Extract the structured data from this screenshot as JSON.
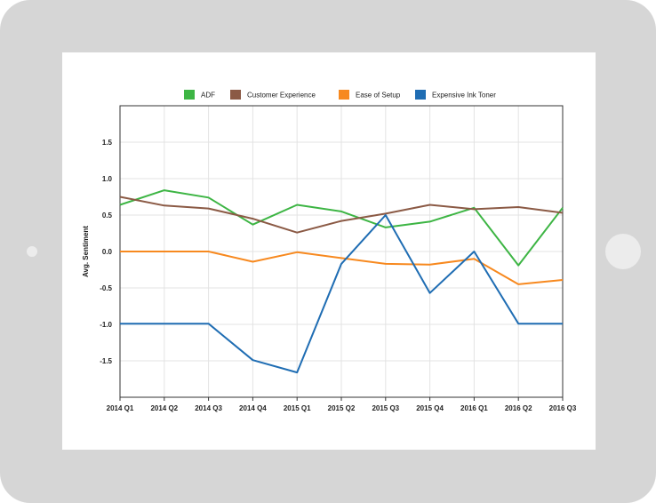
{
  "chart_data": {
    "type": "line",
    "title": "",
    "xlabel": "",
    "ylabel": "Avg. Sentiment",
    "categories": [
      "2014 Q1",
      "2014 Q2",
      "2014 Q3",
      "2014 Q4",
      "2015 Q1",
      "2015 Q2",
      "2015 Q3",
      "2015 Q4",
      "2016 Q1",
      "2016 Q2",
      "2016 Q3"
    ],
    "yticks": [
      "1.5",
      "1.0",
      "0.5",
      "0.0",
      "-0.5",
      "-1.0",
      "-1.5"
    ],
    "ytick_values": [
      1.5,
      1.0,
      0.5,
      0.0,
      -0.5,
      -1.0,
      -1.5
    ],
    "ylim": [
      -2.0,
      2.0
    ],
    "grid": true,
    "legend_position": "top-center",
    "series": [
      {
        "name": "ADF",
        "color": "#3db544",
        "values": [
          0.64,
          0.84,
          0.74,
          0.37,
          0.64,
          0.55,
          0.33,
          0.41,
          0.6,
          -0.19,
          0.6
        ]
      },
      {
        "name": "Customer Experience",
        "color": "#8b5a45",
        "values": [
          0.75,
          0.63,
          0.59,
          0.45,
          0.26,
          0.42,
          0.52,
          0.64,
          0.58,
          0.61,
          0.53
        ]
      },
      {
        "name": "Ease of Setup",
        "color": "#f7891f",
        "values": [
          0.0,
          0.0,
          0.0,
          -0.14,
          -0.01,
          -0.09,
          -0.17,
          -0.18,
          -0.1,
          -0.45,
          -0.39
        ]
      },
      {
        "name": "Expensive Ink Toner",
        "color": "#1f6db3",
        "values": [
          -0.99,
          -0.99,
          -0.99,
          -1.49,
          -1.66,
          -0.17,
          0.5,
          -0.57,
          0.0,
          -0.99,
          -0.99
        ]
      }
    ]
  }
}
